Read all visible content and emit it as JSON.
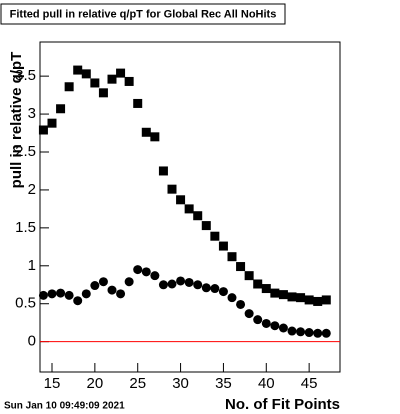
{
  "chart_data": {
    "type": "scatter",
    "title": "Fitted pull in relative q/pT for Global Rec All NoHits",
    "x_label": "No. of Fit Points",
    "y_label": "pull in relative q/pT",
    "timestamp": "Sun Jan 10 09:49:09 2021",
    "x": [
      14,
      15,
      16,
      17,
      18,
      19,
      20,
      21,
      22,
      23,
      24,
      25,
      26,
      27,
      28,
      29,
      30,
      31,
      32,
      33,
      34,
      35,
      36,
      37,
      38,
      39,
      40,
      41,
      42,
      43,
      44,
      45,
      46,
      47
    ],
    "series": [
      {
        "marker": "square",
        "color": "#000000",
        "values": [
          2.79,
          2.88,
          3.07,
          3.36,
          3.58,
          3.53,
          3.41,
          3.28,
          3.46,
          3.54,
          3.43,
          3.14,
          2.76,
          2.7,
          2.25,
          2.01,
          1.87,
          1.75,
          1.66,
          1.53,
          1.39,
          1.26,
          1.12,
          0.99,
          0.87,
          0.76,
          0.7,
          0.64,
          0.62,
          0.59,
          0.58,
          0.55,
          0.53,
          0.55
        ]
      },
      {
        "marker": "circle",
        "color": "#000000",
        "values": [
          0.61,
          0.63,
          0.64,
          0.61,
          0.54,
          0.63,
          0.74,
          0.79,
          0.68,
          0.63,
          0.79,
          0.95,
          0.92,
          0.87,
          0.75,
          0.76,
          0.8,
          0.78,
          0.75,
          0.71,
          0.7,
          0.66,
          0.58,
          0.49,
          0.37,
          0.29,
          0.24,
          0.21,
          0.18,
          0.14,
          0.13,
          0.12,
          0.11,
          0.11
        ]
      }
    ],
    "xlim": [
      13.6,
      48.6
    ],
    "ylim": [
      -0.4,
      3.95
    ],
    "xticks": [
      15,
      20,
      25,
      30,
      35,
      40,
      45
    ],
    "yticks": [
      0,
      0.5,
      1,
      1.5,
      2,
      2.5,
      3,
      3.5
    ],
    "reference_line": {
      "y": 0,
      "color": "#ff0000"
    }
  }
}
